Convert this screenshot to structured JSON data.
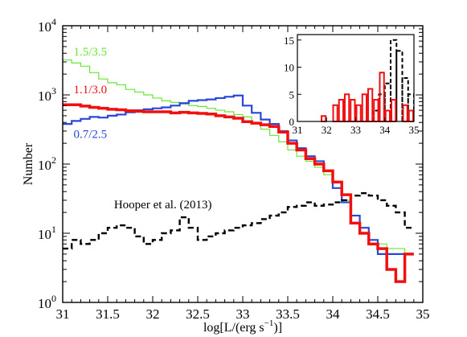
{
  "chart_data": [
    {
      "type": "line",
      "drawstyle": "steps",
      "xlabel": "log[L/(erg s",
      "xlabel_sup": "−1",
      "xlabel_end": ")]",
      "ylabel": "Number",
      "xlim": [
        31,
        35
      ],
      "ylim": [
        1,
        10000
      ],
      "yscale": "log",
      "xticks": [
        "31",
        "31.5",
        "32",
        "32.5",
        "33",
        "33.5",
        "34",
        "34.5",
        "35"
      ],
      "yticks": [
        {
          "base": "10",
          "exp": "0",
          "value": 1
        },
        {
          "base": "10",
          "exp": "1",
          "value": 10
        },
        {
          "base": "10",
          "exp": "2",
          "value": 100
        },
        {
          "base": "10",
          "exp": "3",
          "value": 1000
        },
        {
          "base": "10",
          "exp": "4",
          "value": 10000
        }
      ],
      "bin_edges": [
        31.0,
        31.1,
        31.2,
        31.3,
        31.4,
        31.5,
        31.6,
        31.7,
        31.8,
        31.9,
        32.0,
        32.1,
        32.2,
        32.3,
        32.4,
        32.5,
        32.6,
        32.7,
        32.8,
        32.9,
        33.0,
        33.1,
        33.2,
        33.3,
        33.4,
        33.5,
        33.6,
        33.7,
        33.8,
        33.9,
        34.0,
        34.1,
        34.2,
        34.3,
        34.4,
        34.5,
        34.6,
        34.7,
        34.8,
        34.9
      ],
      "series": [
        {
          "name": "1.5/3.5",
          "color": "#66e633",
          "width": 1.2,
          "dash": "",
          "values": [
            3200,
            2900,
            2600,
            2100,
            1700,
            1500,
            1400,
            1200,
            1100,
            1000,
            900,
            820,
            780,
            740,
            700,
            680,
            640,
            600,
            570,
            520,
            480,
            380,
            320,
            260,
            210,
            160,
            130,
            110,
            90,
            70,
            45,
            30,
            18,
            12,
            8,
            7,
            6,
            6,
            5
          ]
        },
        {
          "name": "0.7/2.5",
          "color": "#2747d9",
          "width": 2.2,
          "dash": "",
          "values": [
            380,
            420,
            450,
            480,
            470,
            500,
            520,
            560,
            600,
            620,
            640,
            660,
            700,
            760,
            820,
            840,
            860,
            900,
            940,
            980,
            700,
            550,
            440,
            380,
            300,
            220,
            170,
            130,
            110,
            80,
            45,
            28,
            18,
            12,
            8,
            5,
            5,
            5,
            5
          ]
        },
        {
          "name": "1.1/3.0",
          "color": "#f01010",
          "width": 3.5,
          "dash": "",
          "values": [
            720,
            720,
            690,
            660,
            640,
            620,
            610,
            590,
            580,
            570,
            570,
            570,
            550,
            560,
            550,
            540,
            530,
            500,
            480,
            460,
            410,
            390,
            370,
            350,
            290,
            200,
            160,
            120,
            100,
            80,
            55,
            36,
            14,
            10,
            7,
            6,
            3,
            2,
            5
          ]
        },
        {
          "name": "Hooper et al. (2013)",
          "color": "#000000",
          "width": 2.4,
          "dash": "7 4",
          "values": [
            6,
            8,
            7,
            8,
            10,
            12,
            13,
            12,
            9,
            7,
            8,
            10,
            11,
            17,
            12,
            8,
            9,
            10,
            11,
            12,
            13,
            14,
            16,
            18,
            20,
            24,
            25,
            28,
            25,
            26,
            28,
            30,
            35,
            38,
            35,
            30,
            25,
            20,
            12
          ]
        }
      ],
      "annotations": [
        {
          "text": "1.5/3.5",
          "color": "#66e633",
          "x": 31.12,
          "y": 3700
        },
        {
          "text": "1.1/3.0",
          "color": "#f01010",
          "x": 31.12,
          "y": 1050
        },
        {
          "text": "0.7/2.5",
          "color": "#2747d9",
          "x": 31.12,
          "y": 240
        },
        {
          "text": "Hooper et al. (2013)",
          "color": "#000000",
          "x": 31.57,
          "y": 23
        }
      ]
    },
    {
      "type": "bar",
      "role": "inset",
      "xlim": [
        31,
        35
      ],
      "ylim": [
        0,
        16
      ],
      "xticks": [
        "31",
        "32",
        "33",
        "34",
        "35"
      ],
      "yticks": [
        "0",
        "5",
        "10",
        "15"
      ],
      "bin_edges": [
        31.8,
        32.0,
        32.2,
        32.4,
        32.6,
        32.8,
        33.0,
        33.2,
        33.4,
        33.6,
        33.8,
        34.0,
        34.2,
        34.4,
        34.6,
        34.8,
        35.0
      ],
      "series": [
        {
          "name": "",
          "color": "#f01010",
          "fill": "none",
          "values": [
            1,
            0,
            3,
            4,
            5,
            4,
            3,
            5,
            6,
            4,
            9,
            2,
            4,
            0,
            3,
            2
          ]
        },
        {
          "name": "",
          "color": "#000000",
          "dash": "5 3",
          "values": [
            0,
            0,
            0,
            0,
            0,
            0,
            0,
            0,
            0,
            2,
            5,
            7,
            15,
            13,
            8,
            5
          ]
        }
      ]
    }
  ]
}
